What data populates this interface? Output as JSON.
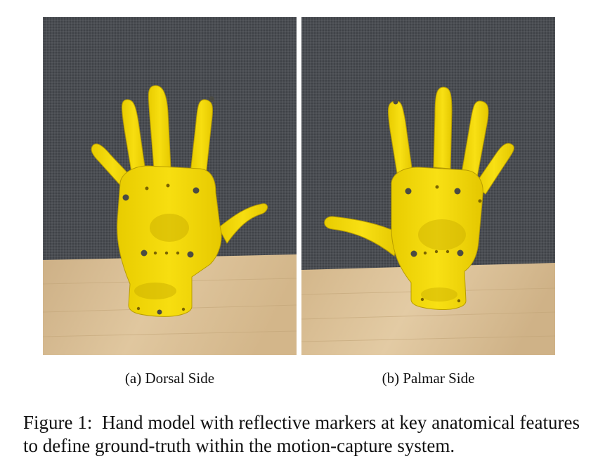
{
  "figure": {
    "label": "Figure 1:",
    "caption": "Hand model with reflective markers at key anatomical features to define ground-truth within the motion-capture system."
  },
  "subfigures": [
    {
      "label": "(a) Dorsal Side"
    },
    {
      "label": "(b) Palmar Side"
    }
  ],
  "colors": {
    "background": "#4a4d52",
    "table": "#d9bd94",
    "hand": "#f2d600",
    "hand_shadow": "#c9ad00",
    "marker": "#4b4b43"
  }
}
